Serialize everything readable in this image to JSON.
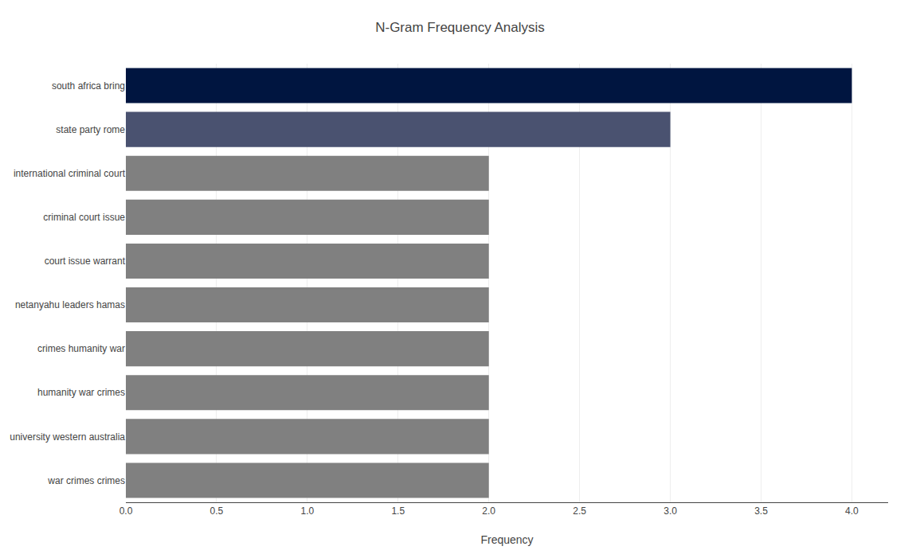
{
  "chart_data": {
    "type": "bar",
    "orientation": "horizontal",
    "title": "N-Gram Frequency Analysis",
    "xlabel": "Frequency",
    "categories": [
      "war crimes crimes",
      "university western australia",
      "humanity war crimes",
      "crimes humanity war",
      "netanyahu leaders hamas",
      "court issue warrant",
      "criminal court issue",
      "international criminal court",
      "state party rome",
      "south africa bring"
    ],
    "values": [
      2,
      2,
      2,
      2,
      2,
      2,
      2,
      2,
      3,
      4
    ],
    "colors": [
      "#808080",
      "#808080",
      "#808080",
      "#808080",
      "#808080",
      "#808080",
      "#808080",
      "#808080",
      "#4a5270",
      "#001540"
    ],
    "xlim": [
      0,
      4.2
    ],
    "xticks": [
      {
        "value": 0,
        "label": "0.0"
      },
      0.5,
      {
        "value": 1,
        "label": "1.0"
      },
      1.5,
      {
        "value": 2,
        "label": "2.0"
      },
      2.5,
      {
        "value": 3,
        "label": "3.0"
      },
      3.5,
      {
        "value": 4,
        "label": "4.0"
      }
    ],
    "grid": true
  }
}
